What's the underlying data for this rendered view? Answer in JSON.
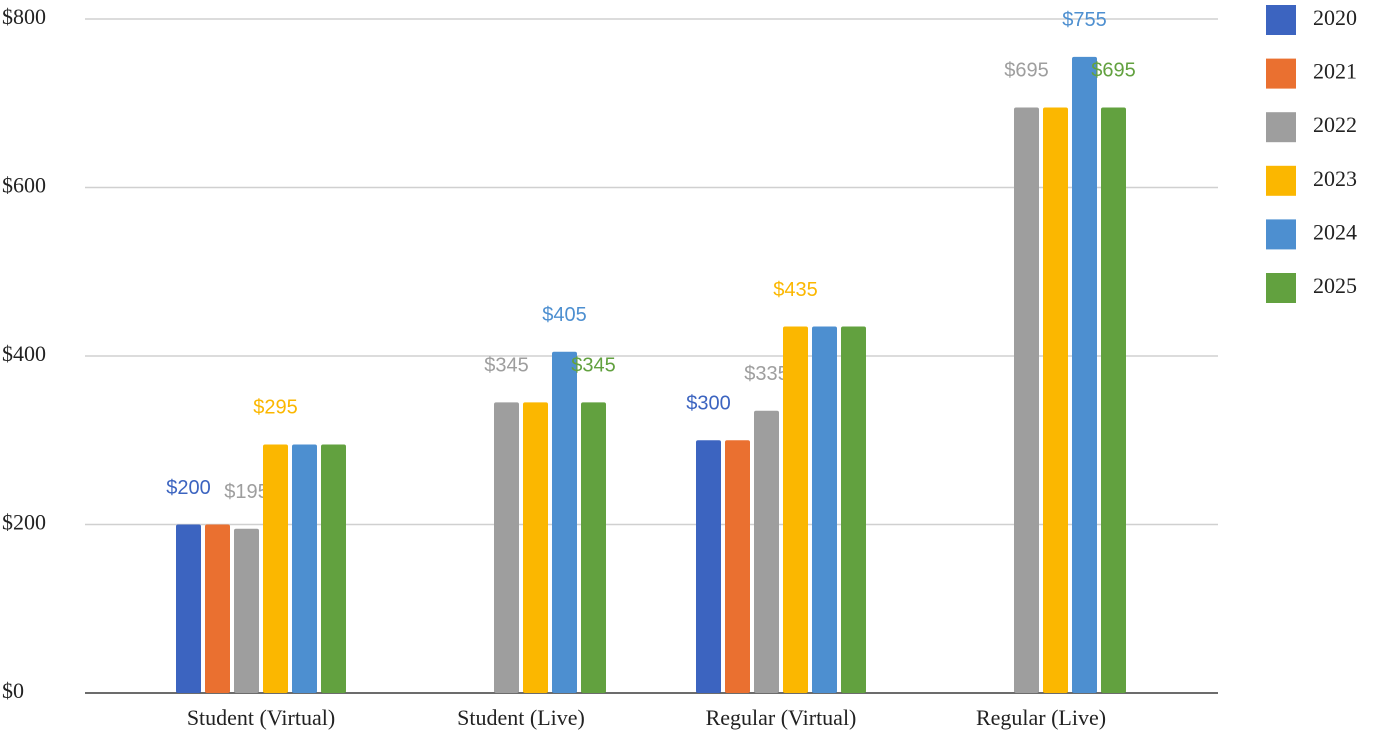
{
  "chart_data": {
    "type": "bar",
    "categories": [
      "Student (Virtual)",
      "Student (Live)",
      "Regular (Virtual)",
      "Regular (Live)"
    ],
    "series": [
      {
        "name": "2020",
        "color": "#3c64c0",
        "values": [
          200,
          null,
          300,
          null
        ],
        "value_labels": [
          "$200",
          null,
          "$300",
          null
        ]
      },
      {
        "name": "2021",
        "color": "#ea7030",
        "values": [
          200,
          null,
          300,
          null
        ],
        "value_labels": [
          null,
          null,
          null,
          null
        ]
      },
      {
        "name": "2022",
        "color": "#9e9e9e",
        "values": [
          195,
          345,
          335,
          695
        ],
        "value_labels": [
          "$195",
          "$345",
          "$335",
          "$695"
        ]
      },
      {
        "name": "2023",
        "color": "#fbb700",
        "values": [
          295,
          345,
          435,
          695
        ],
        "value_labels": [
          "$295",
          null,
          "$435",
          null
        ]
      },
      {
        "name": "2024",
        "color": "#4d8fd0",
        "values": [
          295,
          405,
          435,
          755
        ],
        "value_labels": [
          null,
          "$405",
          null,
          "$755"
        ]
      },
      {
        "name": "2025",
        "color": "#62a13f",
        "values": [
          295,
          345,
          435,
          695
        ],
        "value_labels": [
          null,
          "$345",
          null,
          "$695"
        ]
      }
    ],
    "ylim": [
      0,
      800
    ],
    "yticks": [
      {
        "value": 0,
        "label": "$0"
      },
      {
        "value": 200,
        "label": "$200"
      },
      {
        "value": 400,
        "label": "$400"
      },
      {
        "value": 600,
        "label": "$600"
      },
      {
        "value": 800,
        "label": "$800"
      }
    ],
    "grid": true,
    "legend": "right"
  }
}
